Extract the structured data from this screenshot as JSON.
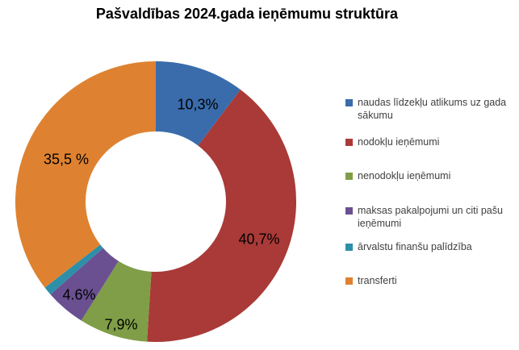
{
  "chart_data": {
    "type": "pie",
    "donut": true,
    "title": "Pašvaldības 2024.gada ieņēmumu struktūra",
    "categories": [
      "naudas līdzekļu atlikums uz gada sākumu",
      "nodokļu ieņēmumi",
      "nenodokļu ieņēmumi",
      "maksas pakalpojumi un citi pašu ieņēmumi",
      "ārvalstu finanšu palīdzība",
      "transferti"
    ],
    "values": [
      10.3,
      40.7,
      7.9,
      4.6,
      1.0,
      35.5
    ],
    "slice_labels": [
      "10,3%",
      "40,7%",
      "7,9%",
      "4.6%",
      "",
      "35,5 %"
    ],
    "colors": [
      "#3a6cab",
      "#a93a38",
      "#7f9e47",
      "#6a5091",
      "#2e8fa9",
      "#de8231"
    ],
    "unit": "%",
    "legend_position": "right",
    "start_angle_deg": 0,
    "clockwise": true,
    "hole_ratio": 0.5
  }
}
